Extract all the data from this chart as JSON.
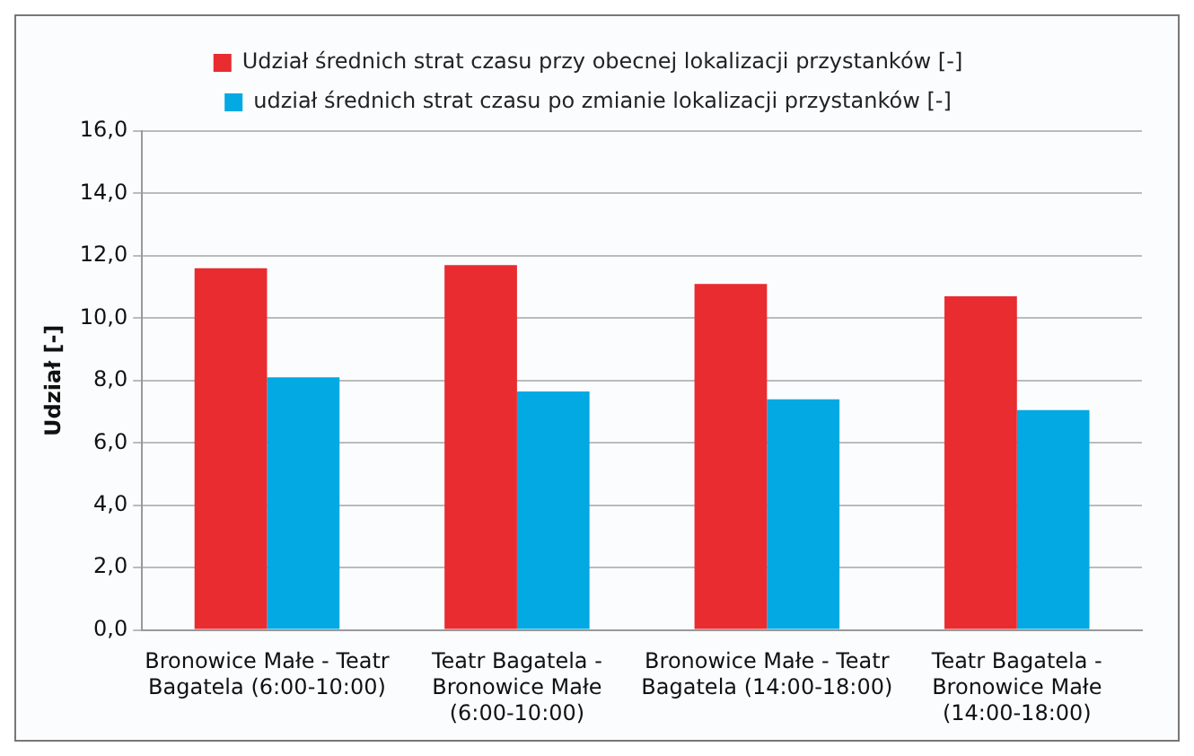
{
  "chart_data": {
    "type": "bar",
    "ylabel": "Udział [-]",
    "categories": [
      "Bronowice Małe - Teatr Bagatela (6:00-10:00)",
      "Teatr Bagatela - Bronowice Małe (6:00-10:00)",
      "Bronowice Małe - Teatr Bagatela (14:00-18:00)",
      "Teatr Bagatela - Bronowice Małe (14:00-18:00)"
    ],
    "series": [
      {
        "name": "Udział średnich strat czasu przy obecnej lokalizacji przystanków [-]",
        "color": "#e82c30",
        "values": [
          11.6,
          11.7,
          11.1,
          10.7
        ]
      },
      {
        "name": "udział średnich strat czasu po zmianie lokalizacji przystanków [-]",
        "color": "#02a9e2",
        "values": [
          8.1,
          7.65,
          7.4,
          7.05
        ]
      }
    ],
    "ylim": [
      0,
      16
    ],
    "yticks": [
      {
        "value": 0,
        "label": "0,0"
      },
      {
        "value": 2,
        "label": "2,0"
      },
      {
        "value": 4,
        "label": "4,0"
      },
      {
        "value": 6,
        "label": "6,0"
      },
      {
        "value": 8,
        "label": "8,0"
      },
      {
        "value": 10,
        "label": "10,0"
      },
      {
        "value": 12,
        "label": "12,0"
      },
      {
        "value": 14,
        "label": "14,0"
      },
      {
        "value": 16,
        "label": "16,0"
      }
    ],
    "grid": "y",
    "legend": "top"
  }
}
